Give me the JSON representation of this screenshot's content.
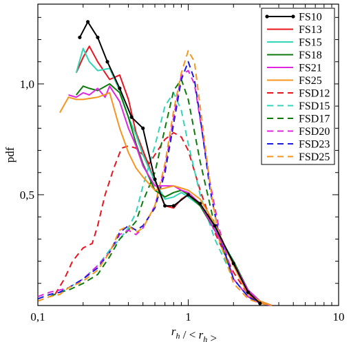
{
  "chart_data": {
    "type": "line",
    "xlabel": "r_h / < r_h >",
    "ylabel": "pdf",
    "x_scale": "log",
    "xlim": [
      0.1,
      10
    ],
    "ylim": [
      0.0,
      1.36
    ],
    "x_ticks": [
      {
        "value": 0.1,
        "label": "0,1"
      },
      {
        "value": 1,
        "label": "1"
      },
      {
        "value": 10,
        "label": "10"
      }
    ],
    "y_ticks": [
      {
        "value": 0.5,
        "label": "0,5"
      },
      {
        "value": 1.0,
        "label": "1,0"
      }
    ],
    "legend_position": "top-right",
    "series": [
      {
        "name": "FS10",
        "color": "#000000",
        "dashed": false,
        "markers": true,
        "x": [
          0.19,
          0.215,
          0.25,
          0.29,
          0.35,
          0.42,
          0.5,
          0.6,
          0.7,
          0.8,
          1.0,
          1.2,
          1.5,
          2.0,
          2.5,
          3.0
        ],
        "y": [
          1.21,
          1.28,
          1.21,
          1.1,
          0.98,
          0.85,
          0.8,
          0.57,
          0.45,
          0.45,
          0.5,
          0.46,
          0.36,
          0.19,
          0.06,
          0.01
        ]
      },
      {
        "name": "FS13",
        "color": "#e8141c",
        "dashed": false,
        "markers": false,
        "x": [
          0.18,
          0.2,
          0.22,
          0.25,
          0.3,
          0.35,
          0.4,
          0.45,
          0.5,
          0.6,
          0.7,
          0.8,
          0.9,
          1.0,
          1.2,
          1.5,
          2.0,
          2.5,
          3.0,
          3.6
        ],
        "y": [
          1.05,
          1.12,
          1.17,
          1.1,
          1.02,
          1.04,
          0.93,
          0.78,
          0.7,
          0.56,
          0.45,
          0.44,
          0.48,
          0.5,
          0.45,
          0.36,
          0.19,
          0.06,
          0.02,
          0.0
        ]
      },
      {
        "name": "FS15",
        "color": "#2fd6b8",
        "dashed": false,
        "markers": false,
        "x": [
          0.18,
          0.2,
          0.22,
          0.25,
          0.3,
          0.35,
          0.4,
          0.45,
          0.5,
          0.6,
          0.7,
          0.8,
          0.9,
          1.0,
          1.2,
          1.5,
          2.0,
          2.5,
          3.0,
          3.6
        ],
        "y": [
          1.05,
          1.16,
          1.1,
          1.06,
          1.07,
          0.97,
          0.85,
          0.77,
          0.68,
          0.56,
          0.48,
          0.49,
          0.51,
          0.49,
          0.45,
          0.35,
          0.2,
          0.07,
          0.02,
          0.0
        ]
      },
      {
        "name": "FS18",
        "color": "#0b7a0b",
        "dashed": false,
        "markers": false,
        "x": [
          0.18,
          0.2,
          0.22,
          0.25,
          0.3,
          0.35,
          0.4,
          0.45,
          0.5,
          0.6,
          0.7,
          0.8,
          0.9,
          1.0,
          1.2,
          1.5,
          2.0,
          2.5,
          3.0,
          3.6
        ],
        "y": [
          0.95,
          0.99,
          0.98,
          0.97,
          1.0,
          0.96,
          0.85,
          0.73,
          0.64,
          0.52,
          0.49,
          0.51,
          0.52,
          0.5,
          0.45,
          0.34,
          0.2,
          0.07,
          0.02,
          0.0
        ]
      },
      {
        "name": "FS21",
        "color": "#e025e0",
        "dashed": false,
        "markers": false,
        "x": [
          0.16,
          0.18,
          0.2,
          0.22,
          0.25,
          0.28,
          0.3,
          0.35,
          0.4,
          0.45,
          0.5,
          0.6,
          0.7,
          0.8,
          0.9,
          1.0,
          1.2,
          1.5,
          2.0,
          2.5,
          3.0,
          3.6
        ],
        "y": [
          0.95,
          0.94,
          0.96,
          0.95,
          0.98,
          0.94,
          0.99,
          0.92,
          0.8,
          0.72,
          0.63,
          0.54,
          0.54,
          0.54,
          0.52,
          0.51,
          0.46,
          0.34,
          0.19,
          0.07,
          0.02,
          0.0
        ]
      },
      {
        "name": "FS25",
        "color": "#f5951e",
        "dashed": false,
        "markers": false,
        "x": [
          0.14,
          0.16,
          0.18,
          0.2,
          0.25,
          0.3,
          0.35,
          0.4,
          0.45,
          0.5,
          0.6,
          0.7,
          0.8,
          0.9,
          1.0,
          1.2,
          1.5,
          2.0,
          2.5,
          3.0,
          3.6
        ],
        "y": [
          0.87,
          0.94,
          0.93,
          0.93,
          0.94,
          0.96,
          0.8,
          0.69,
          0.62,
          0.58,
          0.52,
          0.53,
          0.54,
          0.53,
          0.52,
          0.48,
          0.37,
          0.18,
          0.05,
          0.02,
          0.0
        ]
      },
      {
        "name": "FSD12",
        "color": "#e8141c",
        "dashed": true,
        "markers": false,
        "x": [
          0.13,
          0.15,
          0.17,
          0.2,
          0.23,
          0.25,
          0.28,
          0.32,
          0.36,
          0.4,
          0.45,
          0.5,
          0.55,
          0.6,
          0.7,
          0.8,
          0.9,
          1.0,
          1.2,
          1.5,
          2.0,
          2.5,
          3.0,
          3.6
        ],
        "y": [
          0.05,
          0.12,
          0.2,
          0.26,
          0.28,
          0.36,
          0.5,
          0.62,
          0.71,
          0.72,
          0.71,
          0.68,
          0.64,
          0.68,
          0.75,
          0.78,
          0.76,
          0.7,
          0.52,
          0.33,
          0.15,
          0.05,
          0.01,
          0.0
        ]
      },
      {
        "name": "FSD15",
        "color": "#2fd6b8",
        "dashed": true,
        "markers": false,
        "x": [
          0.12,
          0.14,
          0.16,
          0.2,
          0.25,
          0.3,
          0.35,
          0.4,
          0.45,
          0.5,
          0.6,
          0.7,
          0.8,
          0.9,
          1.0,
          1.2,
          1.5,
          2.0,
          2.5,
          3.0,
          3.6
        ],
        "y": [
          0.04,
          0.06,
          0.08,
          0.12,
          0.18,
          0.25,
          0.3,
          0.35,
          0.42,
          0.54,
          0.72,
          0.9,
          0.96,
          0.88,
          0.73,
          0.5,
          0.3,
          0.12,
          0.04,
          0.01,
          0.0
        ]
      },
      {
        "name": "FSD17",
        "color": "#0b7a0b",
        "dashed": true,
        "markers": false,
        "x": [
          0.12,
          0.14,
          0.16,
          0.2,
          0.25,
          0.3,
          0.35,
          0.4,
          0.45,
          0.5,
          0.6,
          0.7,
          0.8,
          0.9,
          1.0,
          1.2,
          1.5,
          2.0,
          2.5,
          3.0,
          3.6
        ],
        "y": [
          0.04,
          0.06,
          0.07,
          0.1,
          0.14,
          0.22,
          0.3,
          0.34,
          0.38,
          0.47,
          0.6,
          0.8,
          0.97,
          1.02,
          0.93,
          0.65,
          0.36,
          0.12,
          0.04,
          0.01,
          0.0
        ]
      },
      {
        "name": "FSD20",
        "color": "#e025e0",
        "dashed": true,
        "markers": false,
        "x": [
          0.1,
          0.12,
          0.14,
          0.16,
          0.2,
          0.25,
          0.3,
          0.35,
          0.4,
          0.45,
          0.5,
          0.6,
          0.7,
          0.8,
          0.9,
          1.0,
          1.1,
          1.2,
          1.4,
          1.6,
          2.0,
          2.5,
          3.0,
          3.6
        ],
        "y": [
          0.04,
          0.06,
          0.07,
          0.08,
          0.12,
          0.18,
          0.24,
          0.32,
          0.34,
          0.32,
          0.35,
          0.45,
          0.62,
          0.85,
          1.04,
          1.06,
          1.0,
          0.84,
          0.55,
          0.35,
          0.12,
          0.04,
          0.01,
          0.0
        ]
      },
      {
        "name": "FSD23",
        "color": "#1a1ae0",
        "dashed": true,
        "markers": false,
        "x": [
          0.1,
          0.12,
          0.14,
          0.16,
          0.2,
          0.25,
          0.3,
          0.35,
          0.4,
          0.45,
          0.5,
          0.6,
          0.7,
          0.8,
          0.9,
          1.0,
          1.1,
          1.2,
          1.4,
          1.6,
          2.0,
          2.5,
          3.0,
          3.6
        ],
        "y": [
          0.03,
          0.05,
          0.06,
          0.08,
          0.12,
          0.17,
          0.24,
          0.33,
          0.36,
          0.34,
          0.36,
          0.44,
          0.6,
          0.82,
          1.02,
          1.1,
          1.02,
          0.85,
          0.52,
          0.32,
          0.12,
          0.04,
          0.01,
          0.0
        ]
      },
      {
        "name": "FSD25",
        "color": "#f5951e",
        "dashed": true,
        "markers": false,
        "x": [
          0.1,
          0.12,
          0.14,
          0.16,
          0.2,
          0.25,
          0.3,
          0.35,
          0.4,
          0.45,
          0.5,
          0.6,
          0.7,
          0.8,
          0.9,
          1.0,
          1.1,
          1.2,
          1.4,
          1.6,
          2.0,
          2.5,
          3.0,
          3.6
        ],
        "y": [
          0.02,
          0.04,
          0.05,
          0.08,
          0.11,
          0.16,
          0.24,
          0.34,
          0.36,
          0.33,
          0.35,
          0.45,
          0.64,
          0.88,
          1.05,
          1.15,
          1.1,
          0.9,
          0.54,
          0.3,
          0.1,
          0.03,
          0.01,
          0.0
        ]
      }
    ]
  }
}
